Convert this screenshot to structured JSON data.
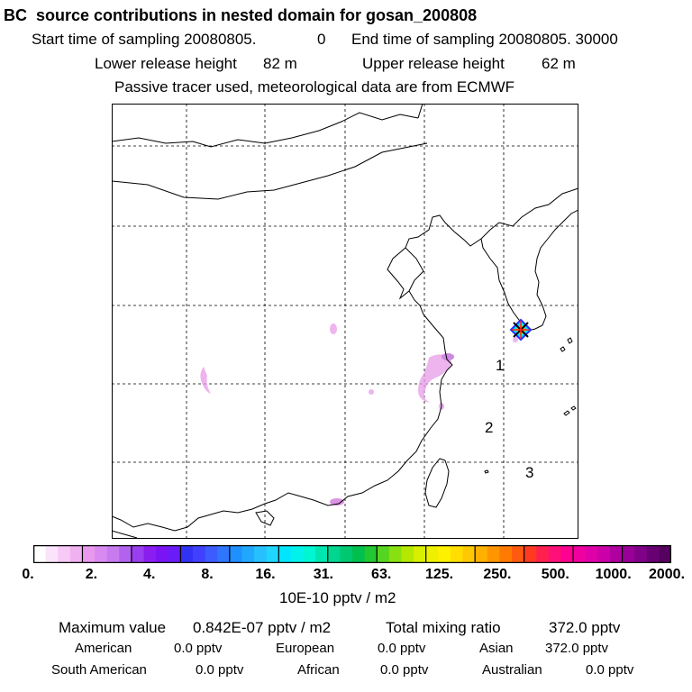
{
  "chart_data": {
    "type": "heatmap",
    "title": "BC  source contributions in nested domain for gosan_200808",
    "header": {
      "start_label": "Start time of sampling 20080805.",
      "start_value": "0",
      "end_label": "End time of sampling 20080805. 30000",
      "lower_label": "Lower release height",
      "lower_value": "82 m",
      "upper_label": "Upper release height",
      "upper_value": "62 m",
      "note": "Passive tracer used, meteorological data are from ECMWF"
    },
    "map_markers": [
      {
        "label": "1"
      },
      {
        "label": "2"
      },
      {
        "label": "3"
      }
    ],
    "colorbar": {
      "unit_label": "10E-10 pptv / m2",
      "tick_labels": [
        "0.",
        "2.",
        "4.",
        "8.",
        "16.",
        "31.",
        "63.",
        "125.",
        "250.",
        "500.",
        "1000.",
        "2000."
      ],
      "colors": [
        "#ffffff",
        "#fbe3fb",
        "#f6c9f6",
        "#f0b1f0",
        "#e899ee",
        "#d98af0",
        "#c77bef",
        "#b163ee",
        "#9a3ff0",
        "#8a1ef0",
        "#7a14f5",
        "#6a1cf8",
        "#3232f5",
        "#4040ff",
        "#3c5cff",
        "#2f76ff",
        "#1e90ff",
        "#20a8ff",
        "#27c0ff",
        "#1fd6ff",
        "#00e6ff",
        "#00f2ea",
        "#00f5d2",
        "#00e6b0",
        "#00d690",
        "#00c870",
        "#00c050",
        "#22c830",
        "#55d520",
        "#88e010",
        "#b4e800",
        "#d8ef00",
        "#eef000",
        "#fff000",
        "#ffde00",
        "#ffc800",
        "#ffb000",
        "#ff9600",
        "#ff7a00",
        "#ff5a10",
        "#ff3a20",
        "#ff2050",
        "#ff1078",
        "#ff0090",
        "#f000a0",
        "#e000a8",
        "#cc00a8",
        "#b000a0",
        "#980098",
        "#800088",
        "#680074",
        "#560060"
      ],
      "group_size": 4
    },
    "stats": {
      "max_label": "Maximum value",
      "max_value": "0.842E-07 pptv / m2",
      "total_label": "Total mixing ratio",
      "total_value": "372.0 pptv"
    },
    "contributions": [
      {
        "region": "American",
        "value": "0.0 pptv"
      },
      {
        "region": "European",
        "value": "0.0 pptv"
      },
      {
        "region": "Asian",
        "value": "372.0 pptv"
      },
      {
        "region": "South American",
        "value": "0.0 pptv"
      },
      {
        "region": "African",
        "value": "0.0 pptv"
      },
      {
        "region": "Australian",
        "value": "0.0 pptv"
      }
    ],
    "colors": {
      "coastline": "#000000",
      "grid": "#000000",
      "tracer": "#e89be8",
      "tracer_strong": "#c060d8"
    }
  }
}
